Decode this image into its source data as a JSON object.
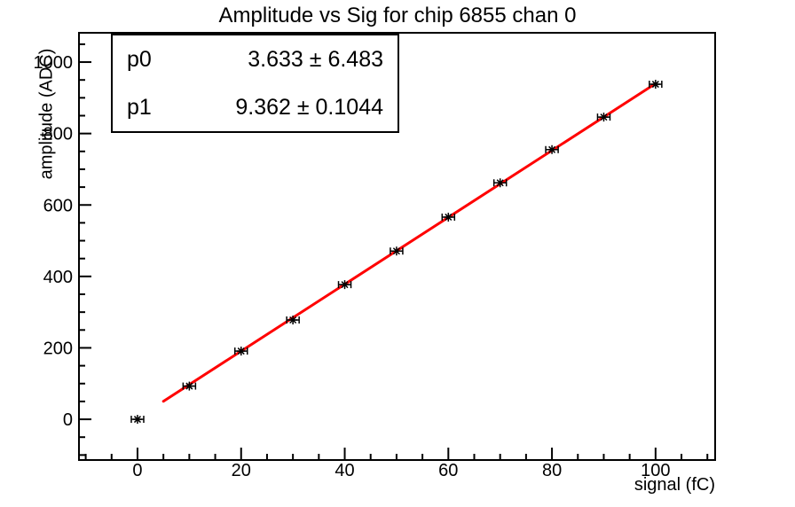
{
  "title": "Amplitude vs Sig for chip 6855 chan 0",
  "stats_box": {
    "rows": [
      {
        "name": "p0",
        "value": "3.633 ± 6.483"
      },
      {
        "name": "p1",
        "value": "9.362 ± 0.1044"
      }
    ]
  },
  "chart_data": {
    "type": "scatter",
    "title": "Amplitude vs Sig for chip 6855 chan 0",
    "xlabel": "signal (fC)",
    "ylabel": "amplitude (ADC)",
    "xlim": [
      -11.3,
      111.5
    ],
    "ylim": [
      -114,
      1082
    ],
    "x_major_ticks": [
      0,
      20,
      40,
      60,
      80,
      100
    ],
    "y_major_ticks": [
      0,
      200,
      400,
      600,
      800,
      1000
    ],
    "x_minor_step": 5,
    "y_minor_step": 50,
    "grid": false,
    "legend": null,
    "points": {
      "x": [
        0,
        10,
        20,
        30,
        40,
        50,
        60,
        70,
        80,
        90,
        100
      ],
      "y": [
        0,
        93,
        191,
        278,
        377,
        471,
        566,
        662,
        755,
        846,
        938
      ],
      "x_error": 1.2
    },
    "fit": {
      "model": "p0 + p1*x",
      "p0": 3.633,
      "p0_err": 6.483,
      "p1": 9.362,
      "p1_err": 0.1044,
      "range": [
        5,
        100
      ],
      "color": "#ff0000"
    },
    "marker": {
      "style": "asterisk",
      "color": "#000000"
    },
    "frame_color": "#000000"
  }
}
